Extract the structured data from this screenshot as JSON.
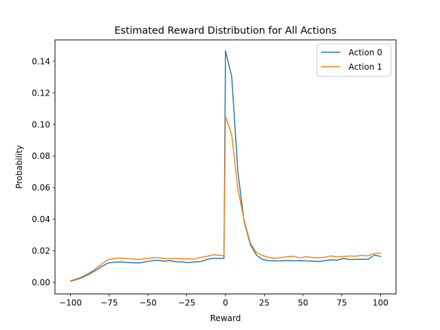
{
  "chart_data": {
    "type": "line",
    "title": "Estimated Reward Distribution for All Actions",
    "xlabel": "Reward",
    "ylabel": "Probability",
    "xlim": [
      -110,
      110
    ],
    "ylim": [
      -0.0073,
      0.1535
    ],
    "xticks": [
      -100,
      -75,
      -50,
      -25,
      0,
      25,
      50,
      75,
      100
    ],
    "xtick_labels": [
      "−100",
      "−75",
      "−50",
      "−25",
      "0",
      "25",
      "50",
      "75",
      "100"
    ],
    "yticks": [
      0.0,
      0.02,
      0.04,
      0.06,
      0.08,
      0.1,
      0.12,
      0.14
    ],
    "ytick_labels": [
      "0.00",
      "0.02",
      "0.04",
      "0.06",
      "0.08",
      "0.10",
      "0.12",
      "0.14"
    ],
    "grid": false,
    "legend_position": "top-right",
    "series": [
      {
        "name": "Action 0",
        "color": "#1f77b4",
        "x": [
          -100,
          -96,
          -92,
          -88,
          -84,
          -80,
          -76,
          -72,
          -68,
          -64,
          -60,
          -56,
          -52,
          -48,
          -44,
          -40,
          -36,
          -32,
          -28,
          -24,
          -20,
          -16,
          -12,
          -8,
          -4,
          -1,
          0,
          4,
          8,
          12,
          16,
          20,
          24,
          28,
          32,
          36,
          40,
          44,
          48,
          52,
          56,
          60,
          64,
          68,
          72,
          76,
          80,
          84,
          88,
          92,
          96,
          100
        ],
        "y": [
          0.0008,
          0.0018,
          0.0033,
          0.0052,
          0.0075,
          0.01,
          0.0122,
          0.0128,
          0.013,
          0.0127,
          0.0125,
          0.0123,
          0.013,
          0.0136,
          0.0141,
          0.0134,
          0.0138,
          0.0131,
          0.013,
          0.0126,
          0.013,
          0.0132,
          0.0145,
          0.0153,
          0.0152,
          0.0152,
          0.1465,
          0.1305,
          0.07,
          0.0385,
          0.024,
          0.0172,
          0.0145,
          0.0138,
          0.0136,
          0.0137,
          0.0139,
          0.0137,
          0.0138,
          0.0136,
          0.0135,
          0.0132,
          0.0138,
          0.0143,
          0.0141,
          0.0152,
          0.0145,
          0.0146,
          0.0146,
          0.0146,
          0.0173,
          0.0165
        ]
      },
      {
        "name": "Action 1",
        "color": "#ff7f0e",
        "x": [
          -100,
          -96,
          -92,
          -88,
          -84,
          -80,
          -76,
          -72,
          -68,
          -64,
          -60,
          -56,
          -52,
          -48,
          -44,
          -40,
          -36,
          -32,
          -28,
          -24,
          -20,
          -16,
          -12,
          -8,
          -4,
          -1,
          0,
          4,
          8,
          12,
          16,
          20,
          24,
          28,
          32,
          36,
          40,
          44,
          48,
          52,
          56,
          60,
          64,
          68,
          72,
          76,
          80,
          84,
          88,
          92,
          96,
          100
        ],
        "y": [
          0.001,
          0.0023,
          0.0038,
          0.006,
          0.0085,
          0.0115,
          0.0143,
          0.0152,
          0.0155,
          0.0152,
          0.0148,
          0.0145,
          0.015,
          0.0155,
          0.0158,
          0.0152,
          0.015,
          0.0153,
          0.0148,
          0.015,
          0.0148,
          0.0158,
          0.0165,
          0.0175,
          0.0172,
          0.017,
          0.105,
          0.0935,
          0.059,
          0.0395,
          0.0248,
          0.019,
          0.017,
          0.0158,
          0.0152,
          0.0158,
          0.0163,
          0.0166,
          0.0155,
          0.0163,
          0.0158,
          0.0156,
          0.0159,
          0.0168,
          0.0162,
          0.0165,
          0.0167,
          0.0166,
          0.0172,
          0.0168,
          0.0183,
          0.0185
        ]
      }
    ]
  }
}
